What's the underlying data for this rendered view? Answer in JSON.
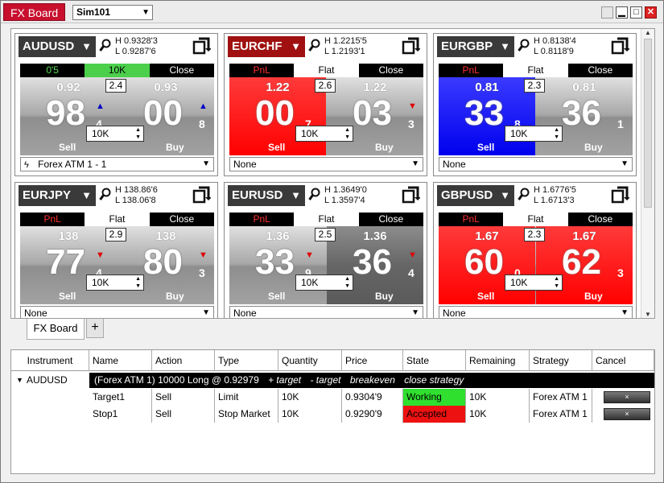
{
  "window": {
    "title": "FX Board",
    "account": "Sim101"
  },
  "tiles": [
    {
      "instrument": "AUDUSD",
      "header_color": "dark",
      "high": "H  0.9328'3",
      "low": "L  0.9287'6",
      "position_tab": "0'5",
      "position_color": "pos",
      "middle_tab": "10K",
      "middle_style": "green",
      "close_tab": "Close",
      "spread": "2.4",
      "sell_small": "0.92",
      "sell_big": "98",
      "sell_pip": "4",
      "sell_arrow": "up",
      "sell_style": "",
      "buy_small": "0.93",
      "buy_big": "00",
      "buy_pip": "8",
      "buy_arrow": "up",
      "buy_style": "",
      "sell_label": "Sell",
      "buy_label": "Buy",
      "qty": "10K",
      "strategy": "Forex ATM 1 - 1",
      "strategy_bolt": true
    },
    {
      "instrument": "EURCHF",
      "header_color": "red",
      "high": "H  1.2215'5",
      "low": "L  1.2193'1",
      "position_tab": "PnL",
      "position_color": "pnl",
      "middle_tab": "Flat",
      "middle_style": "white",
      "close_tab": "Close",
      "spread": "2.6",
      "sell_small": "1.22",
      "sell_big": "00",
      "sell_pip": "7",
      "sell_arrow": "",
      "sell_style": "red",
      "buy_small": "1.22",
      "buy_big": "03",
      "buy_pip": "3",
      "buy_arrow": "down",
      "buy_style": "",
      "sell_label": "Sell",
      "buy_label": "Buy",
      "qty": "10K",
      "strategy": "None",
      "strategy_bolt": false
    },
    {
      "instrument": "EURGBP",
      "header_color": "dark",
      "high": "H  0.8138'4",
      "low": "L  0.8118'9",
      "position_tab": "PnL",
      "position_color": "pnl",
      "middle_tab": "Flat",
      "middle_style": "white",
      "close_tab": "Close",
      "spread": "2.3",
      "sell_small": "0.81",
      "sell_big": "33",
      "sell_pip": "8",
      "sell_arrow": "",
      "sell_style": "blue",
      "buy_small": "0.81",
      "buy_big": "36",
      "buy_pip": "1",
      "buy_arrow": "",
      "buy_style": "",
      "sell_label": "Sell",
      "buy_label": "Buy",
      "qty": "10K",
      "strategy": "None",
      "strategy_bolt": false
    },
    {
      "instrument": "EURJPY",
      "header_color": "dark",
      "high": "H  138.86'6",
      "low": "L  138.06'8",
      "position_tab": "PnL",
      "position_color": "pnl",
      "middle_tab": "Flat",
      "middle_style": "white",
      "close_tab": "Close",
      "spread": "2.9",
      "sell_small": "138",
      "sell_big": "77",
      "sell_pip": "4",
      "sell_arrow": "down",
      "sell_style": "",
      "buy_small": "138",
      "buy_big": "80",
      "buy_pip": "3",
      "buy_arrow": "down",
      "buy_style": "",
      "sell_label": "Sell",
      "buy_label": "Buy",
      "qty": "10K",
      "strategy": "None",
      "strategy_bolt": false
    },
    {
      "instrument": "EURUSD",
      "header_color": "dark",
      "high": "H  1.3649'0",
      "low": "L  1.3597'4",
      "position_tab": "PnL",
      "position_color": "pnl",
      "middle_tab": "Flat",
      "middle_style": "white",
      "close_tab": "Close",
      "spread": "2.5",
      "sell_small": "1.36",
      "sell_big": "33",
      "sell_pip": "9",
      "sell_arrow": "down",
      "sell_style": "",
      "buy_small": "1.36",
      "buy_big": "36",
      "buy_pip": "4",
      "buy_arrow": "down",
      "buy_style": "dark",
      "sell_label": "Sell",
      "buy_label": "Buy",
      "qty": "10K",
      "strategy": "None",
      "strategy_bolt": false
    },
    {
      "instrument": "GBPUSD",
      "header_color": "dark",
      "high": "H  1.6776'5",
      "low": "L  1.6713'3",
      "position_tab": "PnL",
      "position_color": "pnl",
      "middle_tab": "Flat",
      "middle_style": "white",
      "close_tab": "Close",
      "spread": "2.3",
      "sell_small": "1.67",
      "sell_big": "60",
      "sell_pip": "0",
      "sell_arrow": "",
      "sell_style": "red",
      "buy_small": "1.67",
      "buy_big": "62",
      "buy_pip": "3",
      "buy_arrow": "",
      "buy_style": "red",
      "sell_label": "Sell",
      "buy_label": "Buy",
      "qty": "10K",
      "strategy": "None",
      "strategy_bolt": false
    }
  ],
  "tabs": {
    "active": "FX Board",
    "add": "+"
  },
  "orders": {
    "columns": [
      "Instrument",
      "Name",
      "Action",
      "Type",
      "Quantity",
      "Price",
      "State",
      "Remaining",
      "Strategy",
      "Cancel"
    ],
    "instrument": "AUDUSD",
    "summary": "(Forex ATM 1)  10000 Long @ 0.92979",
    "summary_actions": [
      "+ target",
      "- target",
      "breakeven",
      "close strategy"
    ],
    "rows": [
      {
        "name": "Target1",
        "action": "Sell",
        "type": "Limit",
        "quantity": "10K",
        "price": "0.9304'9",
        "state": "Working",
        "state_style": "working",
        "remaining": "10K",
        "strategy": "Forex ATM 1",
        "cancel": "×"
      },
      {
        "name": "Stop1",
        "action": "Sell",
        "type": "Stop Market",
        "quantity": "10K",
        "price": "0.9290'9",
        "state": "Accepted",
        "state_style": "accepted",
        "remaining": "10K",
        "strategy": "Forex ATM 1",
        "cancel": "×"
      }
    ]
  },
  "icons": {
    "dropdown": "▼",
    "search": "🔍",
    "flip": "⇆",
    "up": "▲",
    "down": "▼",
    "bolt": "ϟ",
    "minimize": "▁",
    "maximize": "□",
    "close": "✕"
  },
  "colors": {
    "title_red": "#c8102e",
    "sell_red": "#ff0000",
    "sell_blue": "#0000ee",
    "working_green": "#2fe02f",
    "accepted_red": "#ee1111"
  }
}
